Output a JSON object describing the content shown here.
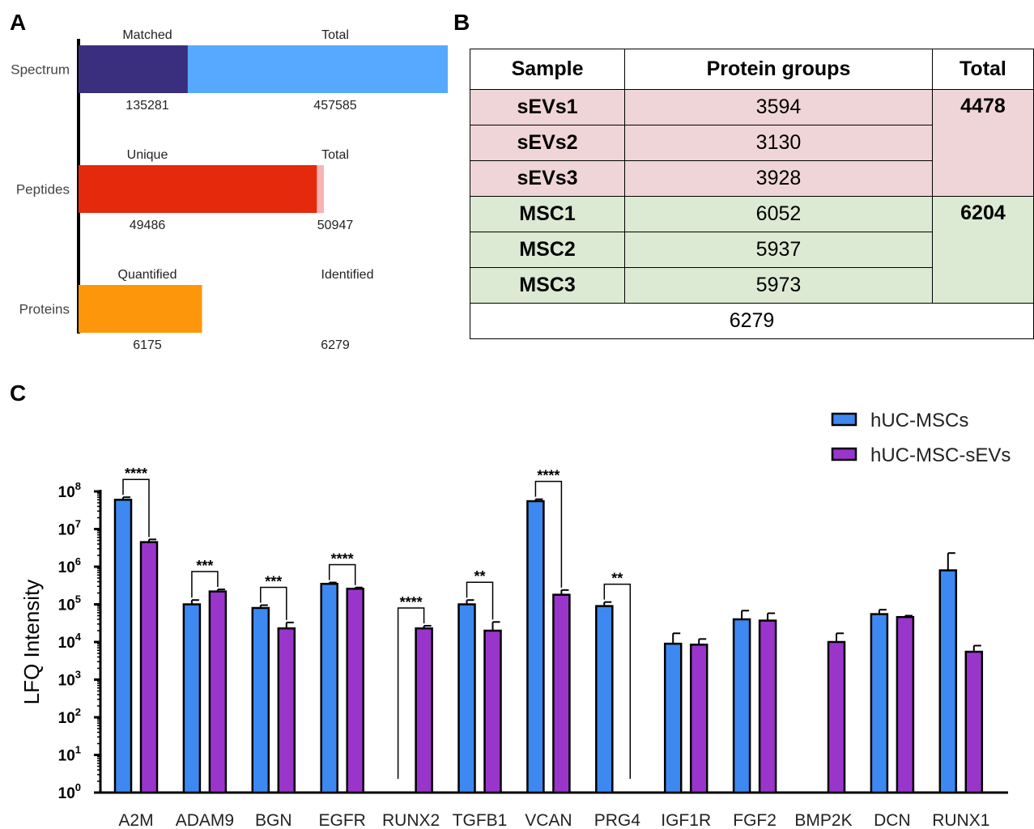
{
  "panels": {
    "a": "A",
    "b": "B",
    "c": "C"
  },
  "panel_a": {
    "rows": [
      {
        "label": "Spectrum",
        "left_caption": "Matched",
        "right_caption": "Total",
        "inner_value": "135281",
        "total_value": "457585",
        "inner": 135281,
        "total": 457585,
        "inner_color": "#3a2f7e",
        "total_color": "#56a9ff"
      },
      {
        "label": "Peptides",
        "left_caption": "Unique",
        "right_caption": "Total",
        "inner_value": "49486",
        "total_value": "50947",
        "inner": 49486,
        "total": 50947,
        "inner_color": "#e5290c",
        "total_color": "#f9b3b3"
      },
      {
        "label": "Proteins",
        "left_caption": "Quantified",
        "right_caption": "Identified",
        "inner_value": "6175",
        "total_value": "6279",
        "inner": 6175,
        "total": 6279,
        "inner_color": "#fe960b",
        "total_color": "#fe960b"
      }
    ]
  },
  "panel_b": {
    "headers": [
      "Sample",
      "Protein groups",
      "Total"
    ],
    "rows": [
      {
        "sample": "sEVs1",
        "groups": "3594"
      },
      {
        "sample": "sEVs2",
        "groups": "3130"
      },
      {
        "sample": "sEVs3",
        "groups": "3928"
      },
      {
        "sample": "MSC1",
        "groups": "6052"
      },
      {
        "sample": "MSC2",
        "groups": "5937"
      },
      {
        "sample": "MSC3",
        "groups": "5973"
      }
    ],
    "totals": [
      "4478",
      "6204"
    ],
    "grand_total": "6279",
    "colors": {
      "sevs": "#efd5d7",
      "msc": "#dce9d3"
    }
  },
  "chart_data": {
    "type": "bar",
    "ylabel": "LFQ Intensity",
    "yscale": "log",
    "ylim": [
      1,
      100000000
    ],
    "ytick_base": "10",
    "ytick_exponents": [
      "0",
      "1",
      "2",
      "3",
      "4",
      "5",
      "6",
      "7",
      "8"
    ],
    "categories": [
      "A2M",
      "ADAM9",
      "BGN",
      "EGFR",
      "RUNX2",
      "TGFB1",
      "VCAN",
      "PRG4",
      "IGF1R",
      "FGF2",
      "BMP2K",
      "DCN",
      "RUNX1"
    ],
    "series": [
      {
        "name": "hUC-MSCs",
        "color": "#3d89f1",
        "values": [
          60000000,
          100000,
          80000,
          350000,
          null,
          100000,
          55000000,
          90000,
          9000,
          40000,
          null,
          55000,
          800000
        ],
        "error_upper": [
          70000000,
          130000,
          95000,
          380000,
          null,
          130000,
          62000000,
          115000,
          17000,
          68000,
          null,
          72000,
          2300000
        ]
      },
      {
        "name": "hUC-MSC-sEVs",
        "color": "#9a35cc",
        "values": [
          4500000,
          220000,
          23000,
          260000,
          23000,
          20000,
          180000,
          null,
          8500,
          37000,
          10000,
          46000,
          5500
        ],
        "error_upper": [
          5300000,
          250000,
          33000,
          280000,
          27000,
          34000,
          240000,
          null,
          12000,
          58000,
          17000,
          50000,
          8000
        ]
      }
    ],
    "significance": [
      {
        "category": "A2M",
        "label": "****"
      },
      {
        "category": "ADAM9",
        "label": "***"
      },
      {
        "category": "BGN",
        "label": "***"
      },
      {
        "category": "EGFR",
        "label": "****"
      },
      {
        "category": "RUNX2",
        "label": "****"
      },
      {
        "category": "TGFB1",
        "label": "**"
      },
      {
        "category": "VCAN",
        "label": "****"
      },
      {
        "category": "PRG4",
        "label": "**"
      }
    ],
    "legend_position": "top-right"
  }
}
